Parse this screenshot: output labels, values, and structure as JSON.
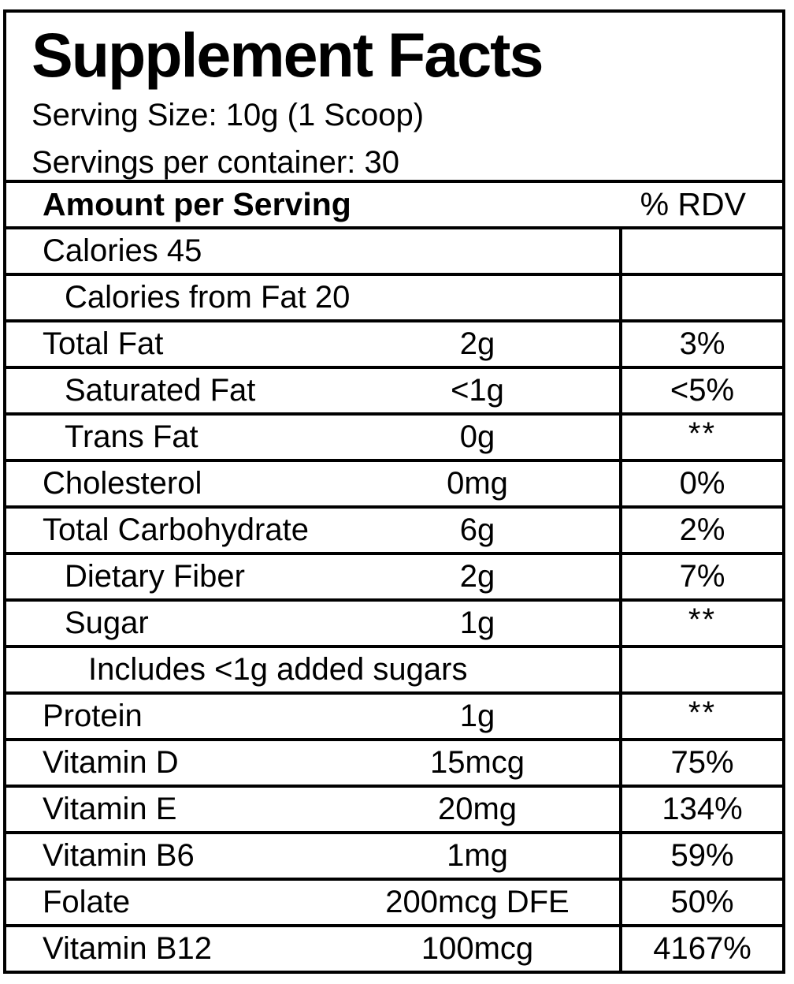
{
  "label": {
    "title": "Supplement Facts",
    "serving_size": "Serving Size: 10g (1 Scoop)",
    "servings_per_container": "Servings per container: 30",
    "colors": {
      "border": "#000000",
      "text": "#000000",
      "background": "#ffffff"
    }
  },
  "table": {
    "header": {
      "amount_label": "Amount per Serving",
      "rdv_label": "% RDV"
    },
    "rows": [
      {
        "label": "Calories 45",
        "indent": 0,
        "amount": "",
        "rdv": ""
      },
      {
        "label": "Calories from Fat 20",
        "indent": 1,
        "amount": "",
        "rdv": ""
      },
      {
        "label": "Total Fat",
        "indent": 0,
        "amount": "2g",
        "rdv": "3%"
      },
      {
        "label": "Saturated Fat",
        "indent": 1,
        "amount": "<1g",
        "rdv": "<5%"
      },
      {
        "label": "Trans Fat",
        "indent": 1,
        "amount": "0g",
        "rdv": "**"
      },
      {
        "label": "Cholesterol",
        "indent": 0,
        "amount": "0mg",
        "rdv": "0%"
      },
      {
        "label": "Total Carbohydrate",
        "indent": 0,
        "amount": "6g",
        "rdv": "2%"
      },
      {
        "label": "Dietary Fiber",
        "indent": 1,
        "amount": "2g",
        "rdv": "7%"
      },
      {
        "label": "Sugar",
        "indent": 1,
        "amount": "1g",
        "rdv": "**"
      },
      {
        "label": "Includes <1g added sugars",
        "indent": 2,
        "amount": "",
        "rdv": ""
      },
      {
        "label": "Protein",
        "indent": 0,
        "amount": "1g",
        "rdv": "**"
      },
      {
        "label": "Vitamin D",
        "indent": 0,
        "amount": "15mcg",
        "rdv": "75%"
      },
      {
        "label": "Vitamin E",
        "indent": 0,
        "amount": "20mg",
        "rdv": "134%"
      },
      {
        "label": "Vitamin B6",
        "indent": 0,
        "amount": "1mg",
        "rdv": "59%"
      },
      {
        "label": "Folate",
        "indent": 0,
        "amount": "200mcg DFE",
        "rdv": "50%"
      },
      {
        "label": "Vitamin B12",
        "indent": 0,
        "amount": "100mcg",
        "rdv": "4167%"
      }
    ]
  }
}
